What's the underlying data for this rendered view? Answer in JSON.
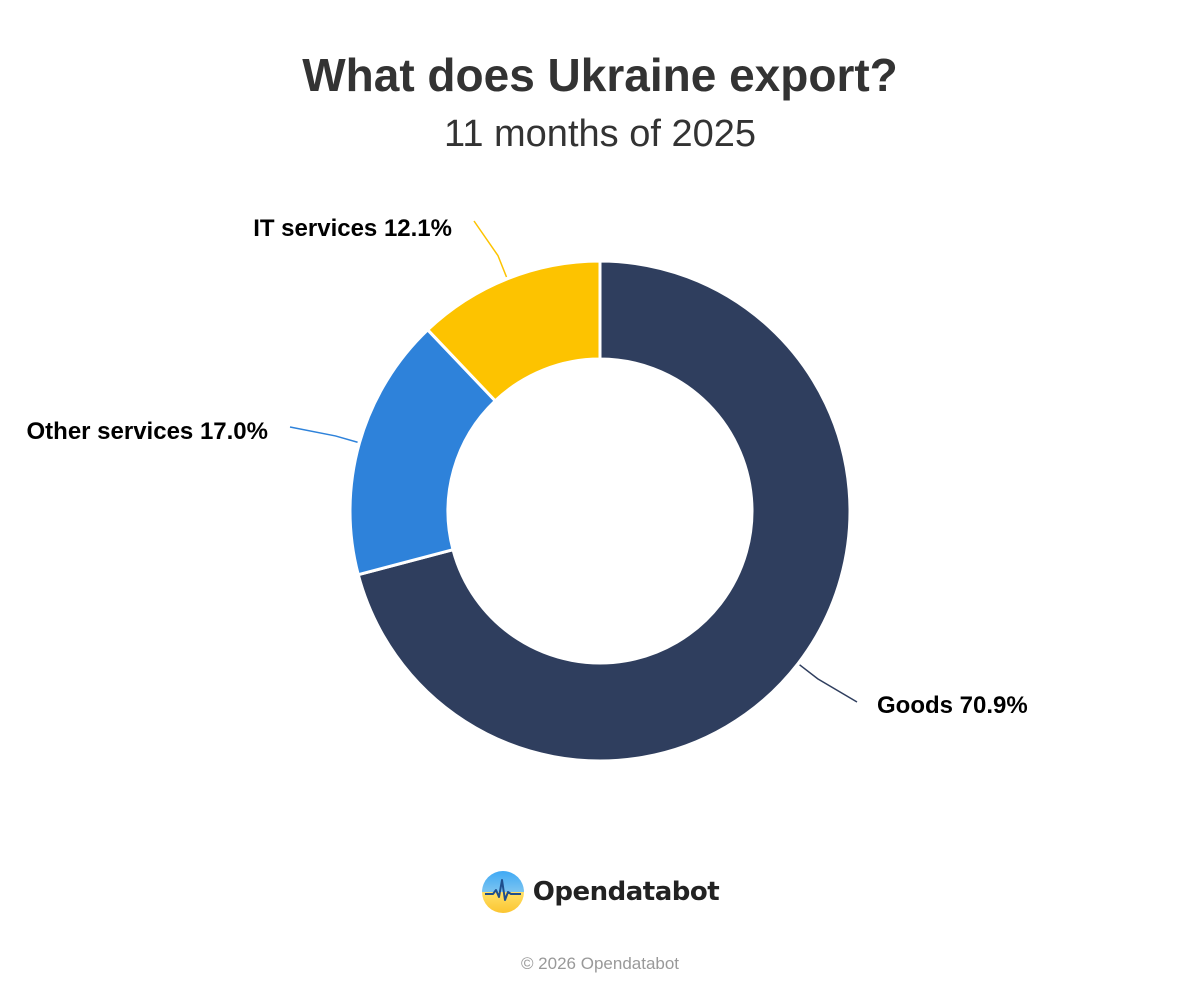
{
  "title": "What does Ukraine export?",
  "subtitle": "11 months of 2025",
  "chart_data": {
    "type": "pie",
    "variant": "donut",
    "title": "What does Ukraine export?",
    "subtitle": "11 months of 2025",
    "slices": [
      {
        "name": "Goods",
        "value": 70.9,
        "label": "Goods 70.9%",
        "color": "#2f3e5e"
      },
      {
        "name": "Other services",
        "value": 17.0,
        "label": "Other services 17.0%",
        "color": "#2e82da"
      },
      {
        "name": "IT services",
        "value": 12.1,
        "label": "IT services 12.1%",
        "color": "#fdc300"
      }
    ],
    "start": "12 o'clock",
    "direction": "clockwise",
    "legend": "none"
  },
  "brand": {
    "name": "Opendatabot",
    "logo_icon": "opendatabot-logo-icon"
  },
  "copyright": "© 2026 Opendatabot"
}
